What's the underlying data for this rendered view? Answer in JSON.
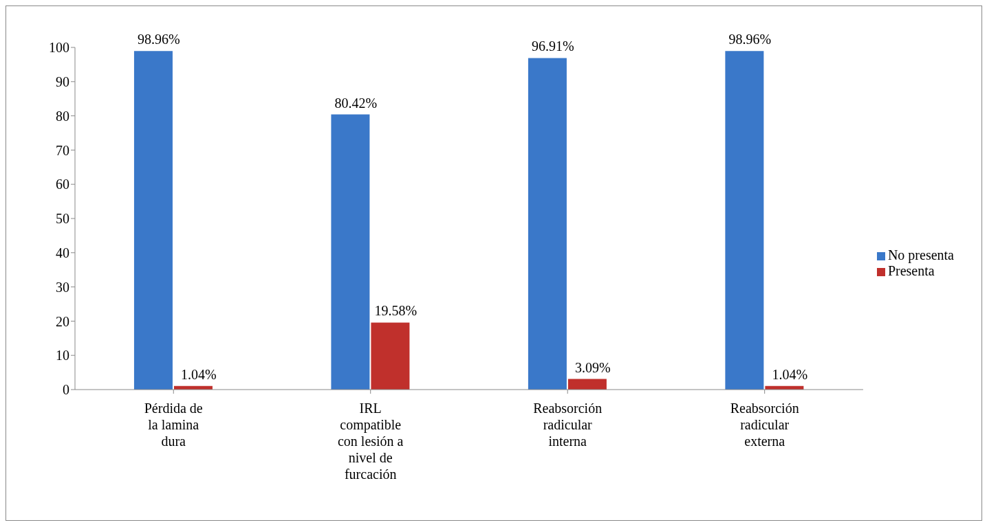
{
  "chart_data": {
    "type": "bar",
    "categories": [
      "Pérdida de la lamina dura",
      "IRL compatible con lesión a nivel de furcación",
      "Reabsorción radicular interna",
      "Reabsorción radicular externa"
    ],
    "series": [
      {
        "name": "No presenta",
        "color": "#3a78c9",
        "values": [
          98.96,
          80.42,
          96.91,
          98.96
        ],
        "value_labels": [
          "98.96%",
          "80.42%",
          "96.91%",
          "98.96%"
        ]
      },
      {
        "name": "Presenta",
        "color": "#c0302c",
        "values": [
          1.04,
          19.58,
          3.09,
          1.04
        ],
        "value_labels": [
          "1.04%",
          "19.58%",
          "3.09%",
          "1.04%"
        ]
      }
    ],
    "ylim": [
      0,
      100
    ],
    "yticks": [
      0,
      10,
      20,
      30,
      40,
      50,
      60,
      70,
      80,
      90,
      100
    ],
    "grid": false,
    "legend": "right"
  }
}
